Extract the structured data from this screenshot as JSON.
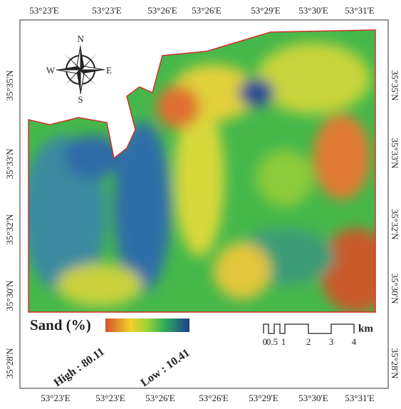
{
  "map": {
    "lon_labels_top": [
      "53°23'E",
      "53°23'E",
      "53°26'E",
      "53°26'E",
      "53°29'E",
      "53°30'E",
      "53°31'E"
    ],
    "lon_labels_bottom": [
      "53°23'E",
      "53°23'E",
      "53°26'E",
      "53°26'E",
      "53°29'E",
      "53°30'E",
      "53°31'E"
    ],
    "lat_labels_left": [
      "35°35'N",
      "35°33'N",
      "35°32'N",
      "35°30'N",
      "35°28'N"
    ],
    "lat_labels_right": [
      "35°35'N",
      "35°33'N",
      "35°32'N",
      "35°30'N",
      "35°28'N"
    ],
    "compass": {
      "n": "N",
      "s": "S",
      "e": "E",
      "w": "W"
    },
    "legend": {
      "title": "Sand (%)",
      "high": "High : 80.11",
      "low": "Low : 10.41"
    },
    "scale_bar": {
      "labels": [
        "0",
        "0.5",
        "1",
        "2",
        "3",
        "4"
      ],
      "unit": "km"
    }
  }
}
